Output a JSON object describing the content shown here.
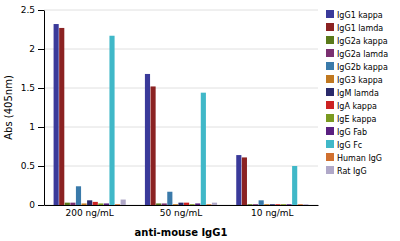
{
  "chart_data": {
    "type": "bar",
    "xlabel": "anti-mouse IgG1",
    "ylabel": "Abs (405nm)",
    "categories": [
      "200 ng/mL",
      "50 ng/mL",
      "10 ng/mL"
    ],
    "series": [
      {
        "name": "IgG1 kappa",
        "color": "#3a3a9a",
        "values": [
          2.32,
          1.68,
          0.64
        ]
      },
      {
        "name": "IgG1 lamda",
        "color": "#8b2222",
        "values": [
          2.27,
          1.52,
          0.61
        ]
      },
      {
        "name": "IgG2a kappa",
        "color": "#5a7a1a",
        "values": [
          0.03,
          0.02,
          0.01
        ]
      },
      {
        "name": "IgG2a lamda",
        "color": "#7a3070",
        "values": [
          0.03,
          0.02,
          0.01
        ]
      },
      {
        "name": "IgG2b kappa",
        "color": "#3a7aaa",
        "values": [
          0.24,
          0.17,
          0.06
        ]
      },
      {
        "name": "IgG3 kappa",
        "color": "#c07820",
        "values": [
          0.02,
          0.01,
          0.01
        ]
      },
      {
        "name": "IgM lamda",
        "color": "#2a2a6a",
        "values": [
          0.06,
          0.03,
          0.01
        ]
      },
      {
        "name": "IgA kappa",
        "color": "#cc2222",
        "values": [
          0.04,
          0.03,
          0.01
        ]
      },
      {
        "name": "IgE kappa",
        "color": "#7a9a20",
        "values": [
          0.02,
          0.01,
          0.01
        ]
      },
      {
        "name": "IgG Fab",
        "color": "#5a2080",
        "values": [
          0.02,
          0.02,
          0.01
        ]
      },
      {
        "name": "IgG Fc",
        "color": "#40b8c8",
        "values": [
          2.17,
          1.44,
          0.5
        ]
      },
      {
        "name": "Human IgG",
        "color": "#d07030",
        "values": [
          0.01,
          0.01,
          0.01
        ]
      },
      {
        "name": "Rat IgG",
        "color": "#b0a8c8",
        "values": [
          0.07,
          0.03,
          0.01
        ]
      }
    ],
    "ylim": [
      0,
      2.5
    ],
    "yticks": [
      0,
      0.5,
      1,
      1.5,
      2,
      2.5
    ],
    "grid": true,
    "legend": "right"
  }
}
